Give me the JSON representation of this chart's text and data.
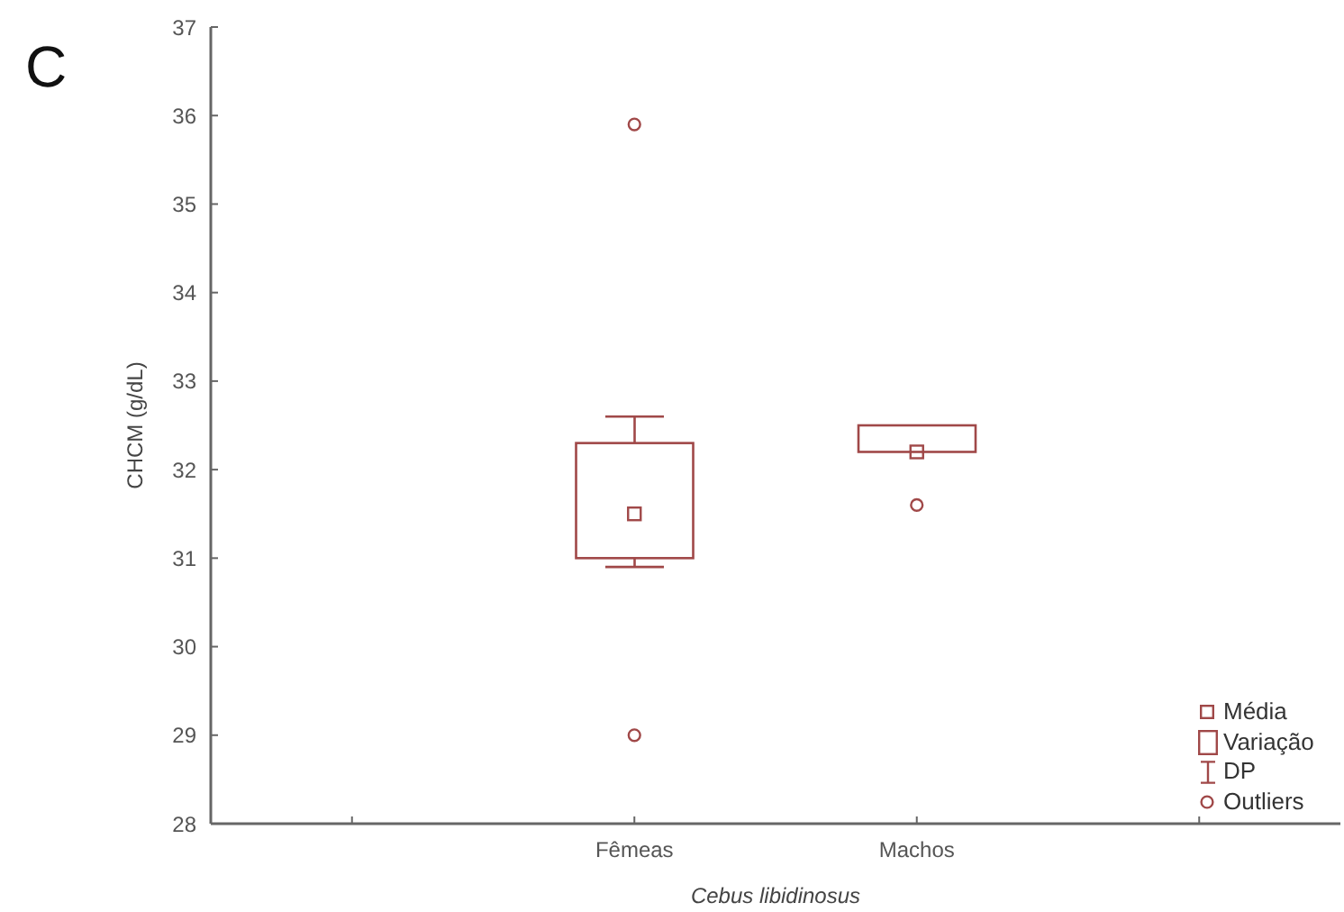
{
  "chart_data": {
    "type": "box",
    "title": "C",
    "xlabel": "Cebus libidinosus",
    "ylabel": "CHCM (g/dL)",
    "categories": [
      null,
      "Fêmeas",
      "Machos",
      null
    ],
    "boxes": [
      null,
      {
        "low": 30.9,
        "q1": 31.0,
        "q3": 32.3,
        "high": 32.6,
        "mean": 31.5,
        "outliers": [
          35.9,
          29.0
        ]
      },
      {
        "low": null,
        "q1": 32.2,
        "q3": 32.5,
        "high": null,
        "mean": 32.2,
        "outliers": [
          31.6
        ]
      },
      null
    ],
    "color": "#a04848",
    "ylim": [
      28,
      37
    ],
    "yticks": [
      28,
      29,
      30,
      31,
      32,
      33,
      34,
      35,
      36,
      37
    ],
    "annotations": [
      "Média",
      "Variação",
      "DP",
      "Outliers"
    ]
  }
}
